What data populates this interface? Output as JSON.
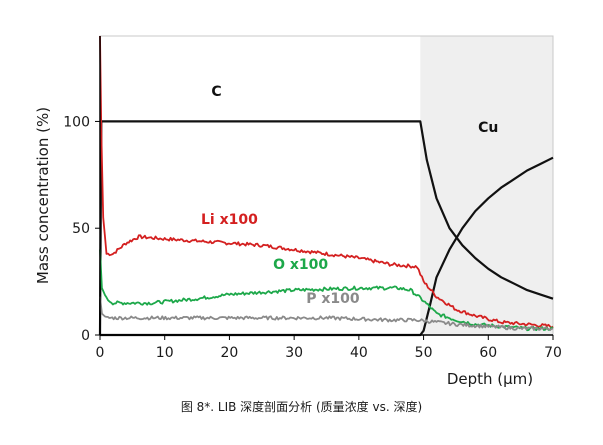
{
  "chart_data": {
    "type": "line",
    "xlabel": "Depth (μm)",
    "ylabel": "Mass concentration (%)",
    "xlim": [
      0,
      70
    ],
    "ylim": [
      0,
      140
    ],
    "x_ticks": [
      0,
      10,
      20,
      30,
      40,
      50,
      60,
      70
    ],
    "y_ticks": [
      0,
      50,
      100
    ],
    "shaded_region": {
      "x_from": 49.5,
      "x_to": 70,
      "color": "#efefef",
      "label": "Cu"
    },
    "series": [
      {
        "name": "C",
        "color": "#111111",
        "x": [
          0,
          0.2,
          49.5,
          50.5,
          52,
          54,
          56,
          58,
          60,
          62,
          64,
          66,
          68,
          70
        ],
        "y": [
          0,
          100,
          100,
          82,
          64,
          50,
          42,
          36,
          31,
          27,
          24,
          21,
          19,
          17
        ]
      },
      {
        "name": "Cu",
        "color": "#111111",
        "x": [
          0,
          49.5,
          50,
          51,
          52,
          54,
          56,
          58,
          60,
          62,
          64,
          66,
          68,
          70
        ],
        "y": [
          0,
          0,
          2,
          14,
          27,
          40,
          50,
          58,
          64,
          69,
          73,
          77,
          80,
          83
        ]
      },
      {
        "name": "Li x100",
        "color": "#d42020",
        "x": [
          0,
          0.2,
          0.5,
          1,
          2,
          4,
          6,
          10,
          15,
          20,
          25,
          30,
          35,
          40,
          45,
          49,
          50,
          52,
          55,
          58,
          62,
          66,
          70
        ],
        "y": [
          140,
          95,
          55,
          38,
          38,
          43,
          46,
          45,
          44,
          43,
          42,
          40,
          38,
          36,
          33,
          32,
          25,
          18,
          12,
          9,
          6,
          5,
          4
        ]
      },
      {
        "name": "O x100",
        "color": "#1da84a",
        "x": [
          0,
          0.3,
          1,
          2,
          4,
          8,
          15,
          20,
          30,
          40,
          46,
          48,
          50,
          52,
          55,
          58,
          62,
          66,
          70
        ],
        "y": [
          40,
          22,
          17,
          15,
          15,
          15,
          17,
          19,
          21,
          22,
          22,
          21,
          16,
          10,
          7,
          5,
          4,
          3,
          3
        ]
      },
      {
        "name": "P x100",
        "color": "#8a8a8a",
        "x": [
          0,
          0.3,
          1,
          3,
          8,
          15,
          25,
          35,
          45,
          49,
          52,
          55,
          60,
          65,
          70
        ],
        "y": [
          18,
          10,
          8,
          8,
          8,
          8,
          8,
          8,
          7,
          7,
          6,
          5,
          4,
          3,
          3
        ]
      }
    ],
    "annotations": [
      {
        "text": "C",
        "x": 18,
        "y": 112,
        "color": "#111111"
      },
      {
        "text": "Cu",
        "x": 60,
        "y": 95,
        "color": "#111111"
      },
      {
        "text": "Li x100",
        "x": 20,
        "y": 52,
        "color": "#d42020"
      },
      {
        "text": "O x100",
        "x": 31,
        "y": 31,
        "color": "#1da84a"
      },
      {
        "text": "P x100",
        "x": 36,
        "y": 15,
        "color": "#8a8a8a"
      }
    ]
  },
  "caption": "图 8*. LIB 深度剖面分析 (质量浓度 vs. 深度)"
}
